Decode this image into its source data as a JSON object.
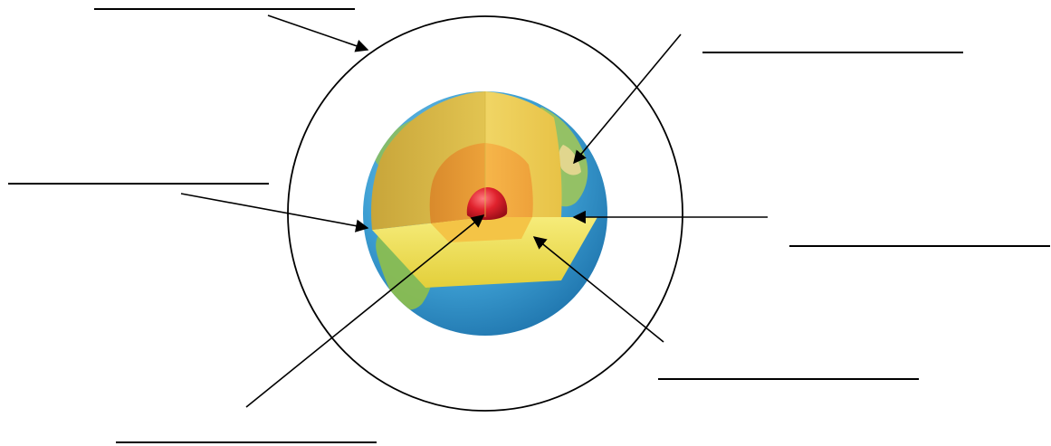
{
  "diagram": {
    "type": "labeling-worksheet",
    "subject": "earth-layers-cutaway",
    "label_blanks": [
      {
        "id": "blank-top-left",
        "text": ""
      },
      {
        "id": "blank-top-right",
        "text": ""
      },
      {
        "id": "blank-middle-left",
        "text": ""
      },
      {
        "id": "blank-middle-right",
        "text": ""
      },
      {
        "id": "blank-bottom-right",
        "text": ""
      },
      {
        "id": "blank-bottom-left",
        "text": ""
      }
    ],
    "colors": {
      "ocean": "#3d9fd3",
      "land": "#8fbf4a",
      "crust": "#f0e25a",
      "mantle": "#e8c040",
      "outer_core": "#f0a030",
      "inner_core": "#d41e2a",
      "line": "#000000"
    }
  }
}
